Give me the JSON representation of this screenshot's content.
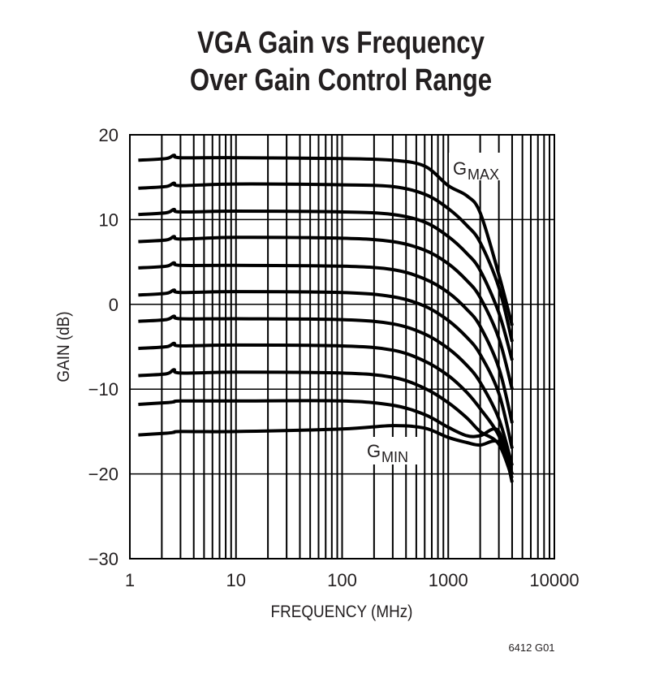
{
  "chart_data": {
    "type": "line",
    "title": [
      "VGA Gain vs Frequency",
      "Over Gain Control Range"
    ],
    "xlabel": "FREQUENCY (MHz)",
    "ylabel": "GAIN (dB)",
    "x_scale": "log",
    "xlim": [
      1,
      10000
    ],
    "ylim": [
      -30,
      20
    ],
    "xticks": [
      "1",
      "10",
      "100",
      "1000",
      "10000"
    ],
    "yticks": [
      "20",
      "10",
      "0",
      "−10",
      "−20",
      "−30"
    ],
    "grid": true,
    "line_color": "#000000",
    "annotations": [
      {
        "text": "G",
        "sub": "MAX",
        "near_series": 0
      },
      {
        "text": "G",
        "sub": "MIN",
        "near_series": 10
      }
    ],
    "figure_code": "6412 G01",
    "x": [
      1.2,
      2.2,
      2.6,
      3,
      10,
      100,
      300,
      600,
      1000,
      1500,
      2000,
      3000,
      4000
    ],
    "series": [
      {
        "values": [
          17.0,
          17.2,
          17.6,
          17.3,
          17.3,
          17.2,
          17.0,
          16.3,
          14.0,
          12.8,
          10.8,
          3.5,
          -2.5
        ]
      },
      {
        "values": [
          13.7,
          13.9,
          14.3,
          14.0,
          14.2,
          14.1,
          13.9,
          13.0,
          11.3,
          9.3,
          7.3,
          2.0,
          -4.4
        ]
      },
      {
        "values": [
          10.6,
          10.8,
          11.2,
          10.9,
          11.0,
          10.9,
          10.6,
          9.7,
          8.0,
          6.0,
          4.0,
          -1.0,
          -6.6
        ]
      },
      {
        "values": [
          7.4,
          7.6,
          8.0,
          7.7,
          7.9,
          7.8,
          7.4,
          6.4,
          4.8,
          2.8,
          0.8,
          -4.0,
          -10.0
        ]
      },
      {
        "values": [
          4.3,
          4.5,
          4.9,
          4.6,
          4.6,
          4.5,
          4.1,
          3.0,
          1.4,
          -0.6,
          -2.6,
          -7.5,
          -14.0
        ]
      },
      {
        "values": [
          1.1,
          1.3,
          1.7,
          1.4,
          1.5,
          1.4,
          0.9,
          -0.2,
          -1.9,
          -3.9,
          -5.9,
          -10.5,
          -17.0
        ]
      },
      {
        "values": [
          -2.0,
          -1.8,
          -1.4,
          -1.7,
          -1.7,
          -1.8,
          -2.3,
          -3.5,
          -5.2,
          -7.2,
          -9.2,
          -13.5,
          -19.0
        ]
      },
      {
        "values": [
          -5.2,
          -5.0,
          -4.6,
          -4.9,
          -4.8,
          -4.9,
          -5.4,
          -6.7,
          -8.4,
          -10.4,
          -12.3,
          -15.5,
          -20.0
        ]
      },
      {
        "values": [
          -8.4,
          -8.2,
          -7.7,
          -8.1,
          -8.0,
          -8.1,
          -8.6,
          -9.9,
          -11.6,
          -13.4,
          -15.0,
          -16.5,
          -20.5
        ]
      },
      {
        "values": [
          -11.8,
          -11.6,
          -11.5,
          -11.4,
          -11.4,
          -11.4,
          -11.9,
          -13.0,
          -14.5,
          -15.5,
          -15.5,
          -15.0,
          -21.0
        ]
      },
      {
        "values": [
          -15.4,
          -15.2,
          -15.1,
          -15.0,
          -15.0,
          -14.7,
          -14.3,
          -14.6,
          -15.7,
          -16.3,
          -16.6,
          -16.3,
          -20.0
        ]
      }
    ]
  }
}
